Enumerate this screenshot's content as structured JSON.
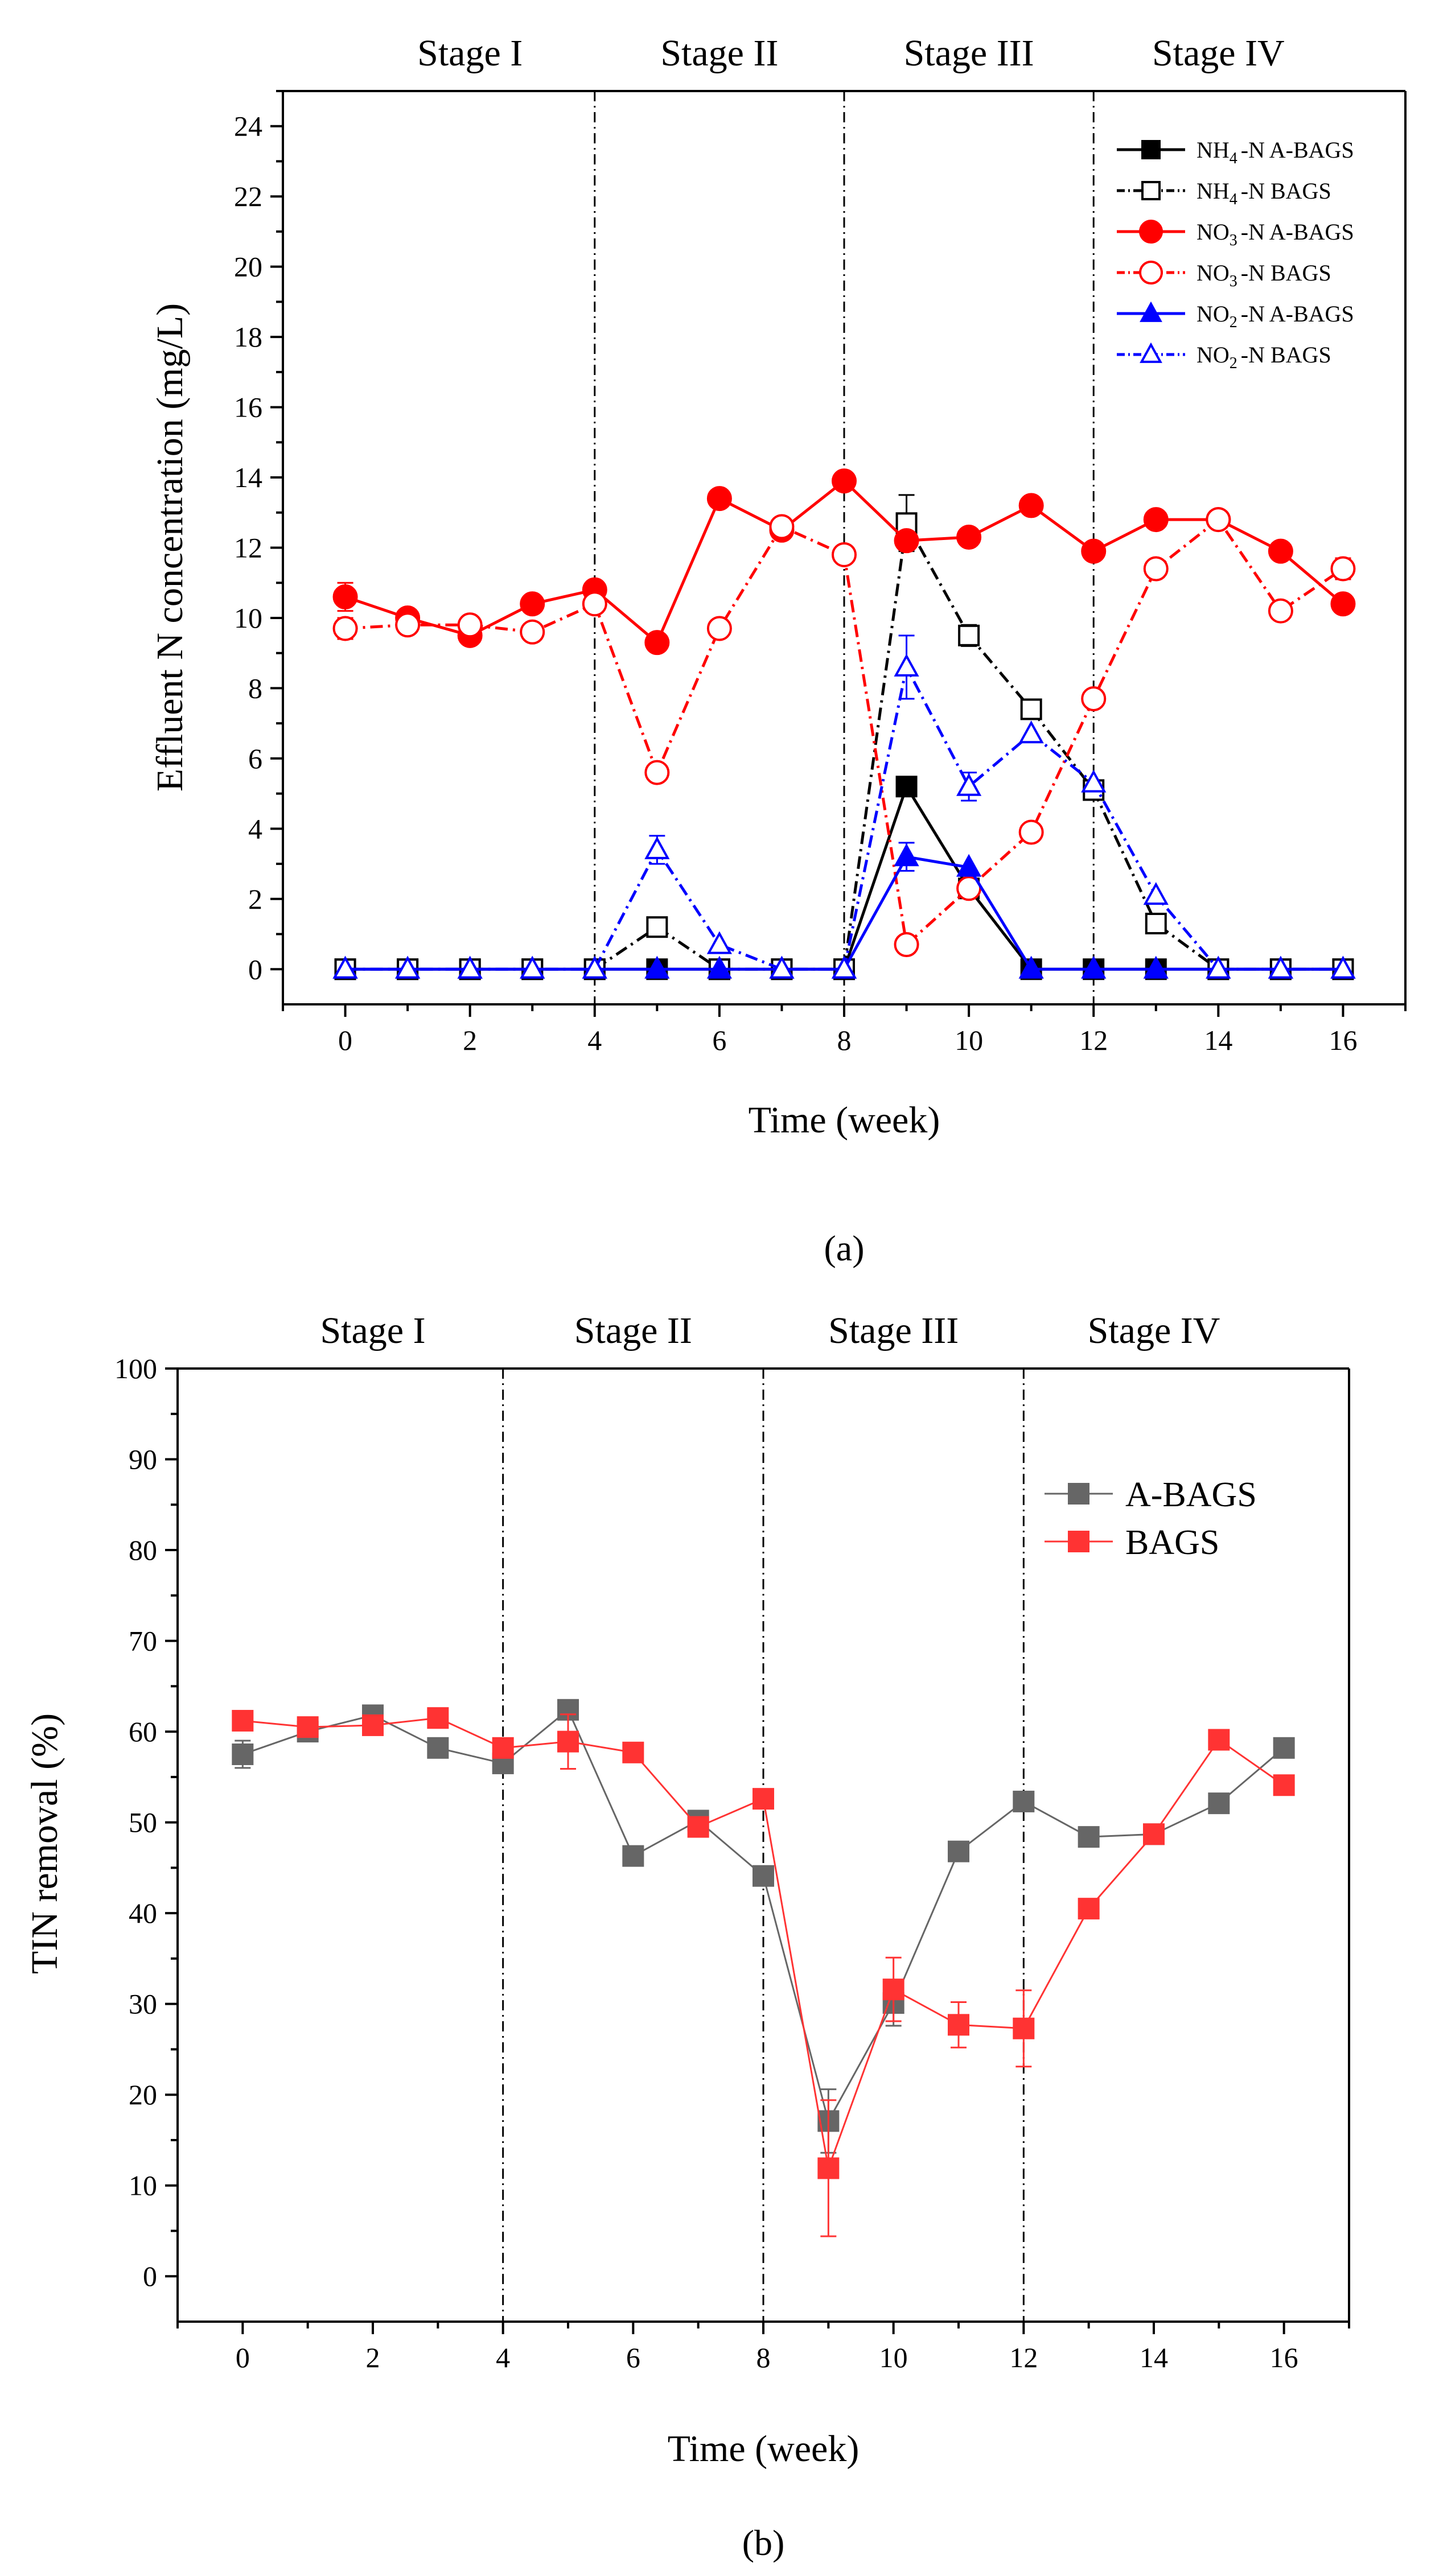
{
  "colors": {
    "black": "#000000",
    "red": "#ff0000",
    "blue": "#0000ff",
    "gray": "#666666",
    "bred": "#ff3333"
  },
  "chart_data": [
    {
      "panel_label": "a",
      "panel_caption": "(a)",
      "type": "line",
      "title": "",
      "xlabel": "Time (week)",
      "ylabel": "Effluent N concentration (mg/L)",
      "xlim": [
        -1,
        17
      ],
      "ylim": [
        -1,
        25
      ],
      "xticks": [
        0,
        2,
        4,
        6,
        8,
        10,
        12,
        14,
        16
      ],
      "yticks": [
        0,
        2,
        4,
        6,
        8,
        10,
        12,
        14,
        16,
        18,
        20,
        22,
        24
      ],
      "stage_boundaries": [
        4,
        8,
        12
      ],
      "stages": [
        {
          "label": "Stage I",
          "center": 2
        },
        {
          "label": "Stage II",
          "center": 6
        },
        {
          "label": "Stage III",
          "center": 10
        },
        {
          "label": "Stage IV",
          "center": 14
        }
      ],
      "legend_position": "top-right",
      "series": [
        {
          "name": "NH4-N A-BAGS",
          "species": "NH",
          "sub": "4",
          "suffix": "-N A-BAGS",
          "color": "#000000",
          "marker": "square",
          "filled": true,
          "linestyle": "solid",
          "x": [
            0,
            1,
            2,
            3,
            4,
            5,
            6,
            7,
            8,
            9,
            10,
            11,
            12,
            13,
            14,
            15,
            16
          ],
          "y": [
            0,
            0,
            0,
            0,
            0,
            0,
            0,
            0,
            0,
            5.2,
            2.3,
            0,
            0,
            0,
            0,
            0,
            0
          ],
          "err": [
            0,
            0,
            0,
            0,
            0,
            0,
            0,
            0,
            0,
            0,
            0,
            0,
            0,
            0,
            0,
            0,
            0
          ]
        },
        {
          "name": "NH4-N BAGS",
          "species": "NH",
          "sub": "4",
          "suffix": "-N BAGS",
          "color": "#000000",
          "marker": "square",
          "filled": false,
          "linestyle": "dashdot",
          "x": [
            0,
            1,
            2,
            3,
            4,
            5,
            6,
            7,
            8,
            9,
            10,
            11,
            12,
            13,
            14,
            15,
            16
          ],
          "y": [
            0,
            0,
            0,
            0,
            0,
            1.2,
            0,
            0,
            0,
            12.7,
            9.5,
            7.4,
            5.1,
            1.3,
            0,
            0,
            0
          ],
          "err": [
            0,
            0,
            0,
            0,
            0,
            0,
            0,
            0,
            0,
            0.8,
            0.3,
            0,
            0,
            0,
            0,
            0,
            0
          ]
        },
        {
          "name": "NO3-N A-BAGS",
          "species": "NO",
          "sub": "3",
          "suffix": "-N A-BAGS",
          "color": "#ff0000",
          "marker": "circle",
          "filled": true,
          "linestyle": "solid",
          "x": [
            0,
            1,
            2,
            3,
            4,
            5,
            6,
            7,
            8,
            9,
            10,
            11,
            12,
            13,
            14,
            15,
            16
          ],
          "y": [
            10.6,
            10.0,
            9.5,
            10.4,
            10.8,
            9.3,
            13.4,
            12.5,
            13.9,
            12.2,
            12.3,
            13.2,
            11.9,
            12.8,
            12.8,
            11.9,
            10.4
          ],
          "err": [
            0.4,
            0,
            0,
            0,
            0,
            0,
            0,
            0,
            0,
            0,
            0,
            0,
            0,
            0,
            0,
            0,
            0
          ]
        },
        {
          "name": "NO3-N BAGS",
          "species": "NO",
          "sub": "3",
          "suffix": "-N BAGS",
          "color": "#ff0000",
          "marker": "circle",
          "filled": false,
          "linestyle": "dashdot",
          "x": [
            0,
            1,
            2,
            3,
            4,
            5,
            6,
            7,
            8,
            9,
            10,
            11,
            12,
            13,
            14,
            15,
            16
          ],
          "y": [
            9.7,
            9.8,
            9.8,
            9.6,
            10.4,
            5.6,
            9.7,
            12.6,
            11.8,
            0.7,
            2.3,
            3.9,
            7.7,
            11.4,
            12.8,
            10.2,
            11.4
          ],
          "err": [
            0.3,
            0,
            0,
            0,
            0,
            0,
            0,
            0,
            0,
            0,
            0,
            0,
            0,
            0,
            0,
            0,
            0.3
          ]
        },
        {
          "name": "NO2-N A-BAGS",
          "species": "NO",
          "sub": "2",
          "suffix": "-N A-BAGS",
          "color": "#0000ff",
          "marker": "triangle",
          "filled": true,
          "linestyle": "solid",
          "x": [
            0,
            1,
            2,
            3,
            4,
            5,
            6,
            7,
            8,
            9,
            10,
            11,
            12,
            13,
            14,
            15,
            16
          ],
          "y": [
            0,
            0,
            0,
            0,
            0,
            0,
            0,
            0,
            0,
            3.2,
            2.9,
            0,
            0,
            0,
            0,
            0,
            0
          ],
          "err": [
            0,
            0,
            0,
            0,
            0,
            0,
            0,
            0,
            0,
            0.4,
            0,
            0,
            0,
            0,
            0,
            0,
            0
          ]
        },
        {
          "name": "NO2-N BAGS",
          "species": "NO",
          "sub": "2",
          "suffix": "-N BAGS",
          "color": "#0000ff",
          "marker": "triangle",
          "filled": false,
          "linestyle": "dashdot",
          "x": [
            0,
            1,
            2,
            3,
            4,
            5,
            6,
            7,
            8,
            9,
            10,
            11,
            12,
            13,
            14,
            15,
            16
          ],
          "y": [
            0,
            0,
            0,
            0,
            0,
            3.4,
            0.7,
            0,
            0,
            8.6,
            5.2,
            6.7,
            5.3,
            2.1,
            0,
            0,
            0
          ],
          "err": [
            0,
            0,
            0,
            0,
            0,
            0.4,
            0,
            0,
            0,
            0.9,
            0.4,
            0,
            0,
            0,
            0,
            0,
            0
          ]
        }
      ]
    },
    {
      "panel_label": "b",
      "panel_caption": "(b)",
      "type": "line",
      "title": "",
      "xlabel": "Time (week)",
      "ylabel": "TIN removal (%)",
      "xlim": [
        -1,
        17
      ],
      "ylim": [
        -5,
        100
      ],
      "xticks": [
        0,
        2,
        4,
        6,
        8,
        10,
        12,
        14,
        16
      ],
      "yticks": [
        0,
        10,
        20,
        30,
        40,
        50,
        60,
        70,
        80,
        90,
        100
      ],
      "stage_boundaries": [
        4,
        8,
        12
      ],
      "stages": [
        {
          "label": "Stage I",
          "center": 2
        },
        {
          "label": "Stage II",
          "center": 6
        },
        {
          "label": "Stage III",
          "center": 10
        },
        {
          "label": "Stage IV",
          "center": 14
        }
      ],
      "legend_position": "right",
      "series": [
        {
          "name": "A-BAGS",
          "color": "#666666",
          "marker": "square",
          "filled": true,
          "linestyle": "solid",
          "x": [
            0,
            1,
            2,
            3,
            4,
            5,
            6,
            7,
            8,
            9,
            10,
            11,
            12,
            13,
            14,
            15,
            16
          ],
          "y": [
            57.5,
            60.0,
            61.8,
            58.2,
            56.5,
            62.4,
            46.3,
            50.2,
            44.1,
            17.1,
            30.1,
            46.8,
            52.3,
            48.4,
            48.7,
            52.1,
            58.2
          ],
          "err": [
            1.5,
            0,
            0,
            0,
            0,
            0,
            0,
            0,
            0,
            3.5,
            2.5,
            0,
            1.0,
            0,
            0,
            0,
            0
          ]
        },
        {
          "name": "BAGS",
          "color": "#ff3333",
          "marker": "square",
          "filled": true,
          "linestyle": "solid",
          "x": [
            0,
            1,
            2,
            3,
            4,
            5,
            6,
            7,
            8,
            9,
            10,
            11,
            12,
            13,
            14,
            15,
            16
          ],
          "y": [
            61.2,
            60.5,
            60.7,
            61.5,
            58.2,
            58.9,
            57.7,
            49.5,
            52.6,
            11.9,
            31.6,
            27.7,
            27.3,
            40.5,
            48.7,
            59.1,
            54.1
          ],
          "err": [
            1.0,
            0,
            0,
            0,
            0,
            3.0,
            0,
            0,
            0,
            7.5,
            3.5,
            2.5,
            4.2,
            0,
            0,
            0,
            0
          ]
        }
      ]
    }
  ]
}
